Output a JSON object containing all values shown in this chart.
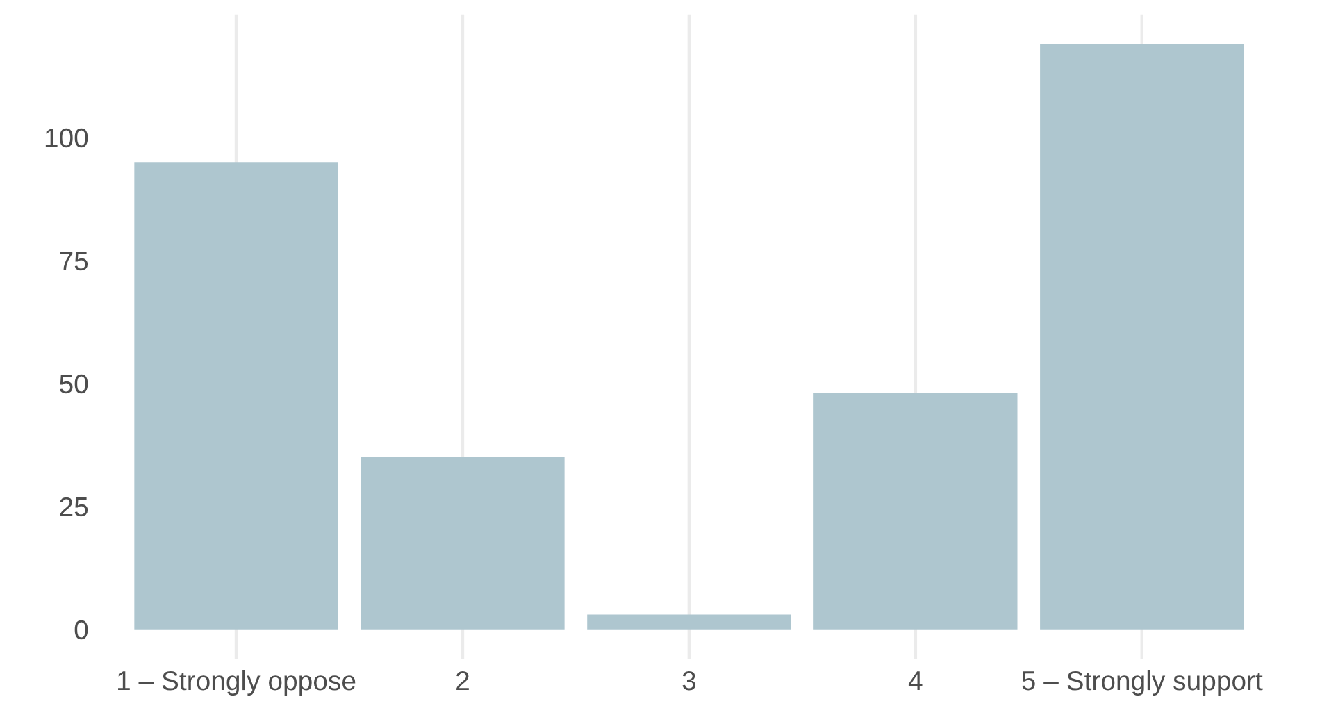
{
  "chart_data": {
    "type": "bar",
    "categories": [
      "1 – Strongly oppose",
      "2",
      "3",
      "4",
      "5 – Strongly support"
    ],
    "values": [
      95,
      35,
      3,
      48,
      119
    ],
    "color": "#aec6cf",
    "ylim": [
      -6,
      125
    ],
    "yticks": [
      0,
      25,
      50,
      75,
      100
    ],
    "grid": "x"
  }
}
